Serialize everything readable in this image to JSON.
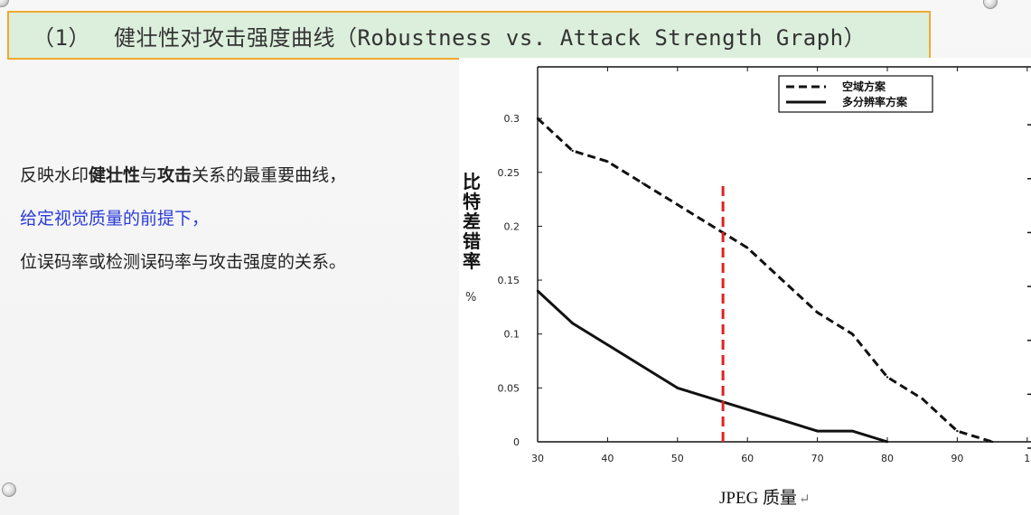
{
  "slide": {
    "title_num": "（1）",
    "title_text": "健壮性对攻击强度曲线（Robustness vs. Attack Strength Graph）",
    "body": {
      "line1_a": "反映水印",
      "line1_b": "健壮性",
      "line1_c": "与",
      "line1_d": "攻击",
      "line1_e": "关系的最重要曲线，",
      "line2": "给定视觉质量的前提下，",
      "line3": "位误码率或检测误码率与攻击强度的关系。"
    }
  },
  "chart_data": {
    "type": "line",
    "xlabel": "JPEG 质量",
    "xlabel_mark": "↵",
    "ylabel": "比特差错率",
    "ylabel_unit": "%",
    "xlim": [
      30,
      100
    ],
    "ylim": [
      0,
      0.33
    ],
    "x_ticks": [
      "30",
      "40",
      "50",
      "60",
      "70",
      "80",
      "90",
      "1"
    ],
    "y_ticks": [
      "0.3",
      "0.25",
      "0.2",
      "0.15",
      "0.1",
      "0.05",
      "0"
    ],
    "legend_position": "top-right",
    "series": [
      {
        "name": "空域方案",
        "style": "dashed",
        "color": "#111111",
        "x": [
          30,
          35,
          40,
          45,
          50,
          55,
          60,
          65,
          70,
          75,
          80,
          85,
          90,
          95
        ],
        "y": [
          0.3,
          0.27,
          0.26,
          0.24,
          0.22,
          0.2,
          0.18,
          0.15,
          0.12,
          0.1,
          0.06,
          0.04,
          0.01,
          0.0
        ]
      },
      {
        "name": "多分辨率方案",
        "style": "solid",
        "color": "#111111",
        "x": [
          30,
          35,
          40,
          45,
          50,
          55,
          60,
          65,
          70,
          75,
          80
        ],
        "y": [
          0.14,
          0.11,
          0.09,
          0.07,
          0.05,
          0.04,
          0.03,
          0.02,
          0.01,
          0.01,
          0.0
        ]
      }
    ],
    "reference_line": {
      "x": 56.5,
      "y_from": 0.0,
      "y_to": 0.24,
      "color": "#e02020",
      "style": "dashed"
    }
  }
}
